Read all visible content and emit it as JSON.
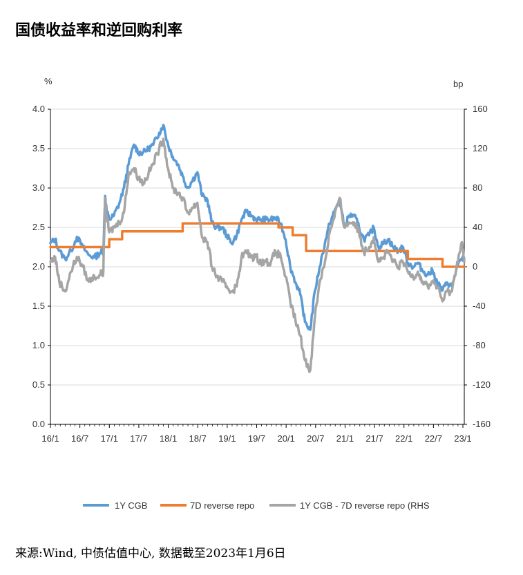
{
  "title": "国债收益率和逆回购利率",
  "source": "来源:Wind, 中债估值中心, 数据截至2023年1月6日",
  "chart_data": {
    "type": "line",
    "left_axis": {
      "unit": "%",
      "ticks": [
        "4.0",
        "3.5",
        "3.0",
        "2.5",
        "2.0",
        "1.5",
        "1.0",
        "0.5",
        "0.0"
      ],
      "ylim": [
        0,
        4
      ]
    },
    "right_axis": {
      "unit": "bp",
      "ticks": [
        "160",
        "120",
        "80",
        "40",
        "0",
        "-40",
        "-80",
        "-120",
        "-160"
      ],
      "ylim": [
        -160,
        160
      ]
    },
    "x_ticks": [
      "16/1",
      "16/7",
      "17/1",
      "17/7",
      "18/1",
      "18/7",
      "19/1",
      "19/7",
      "20/1",
      "20/7",
      "21/1",
      "21/7",
      "22/1",
      "22/7",
      "23/1"
    ],
    "xlim": [
      2016.0,
      2023.04
    ],
    "legend_position": "bottom",
    "grid": true,
    "series": [
      {
        "name": "1Y CGB",
        "axis": "left",
        "color": "#5b9bd5",
        "points": [
          [
            2016.0,
            2.3
          ],
          [
            2016.08,
            2.35
          ],
          [
            2016.15,
            2.2
          ],
          [
            2016.25,
            2.1
          ],
          [
            2016.35,
            2.2
          ],
          [
            2016.45,
            2.38
          ],
          [
            2016.55,
            2.25
          ],
          [
            2016.65,
            2.15
          ],
          [
            2016.75,
            2.12
          ],
          [
            2016.85,
            2.18
          ],
          [
            2016.9,
            2.2
          ],
          [
            2016.93,
            2.9
          ],
          [
            2016.96,
            2.7
          ],
          [
            2017.0,
            2.6
          ],
          [
            2017.08,
            2.65
          ],
          [
            2017.17,
            2.8
          ],
          [
            2017.25,
            3.0
          ],
          [
            2017.33,
            3.3
          ],
          [
            2017.42,
            3.55
          ],
          [
            2017.5,
            3.45
          ],
          [
            2017.58,
            3.45
          ],
          [
            2017.67,
            3.5
          ],
          [
            2017.75,
            3.55
          ],
          [
            2017.85,
            3.7
          ],
          [
            2017.92,
            3.8
          ],
          [
            2018.0,
            3.55
          ],
          [
            2018.08,
            3.4
          ],
          [
            2018.17,
            3.3
          ],
          [
            2018.25,
            3.15
          ],
          [
            2018.33,
            3.0
          ],
          [
            2018.42,
            3.1
          ],
          [
            2018.5,
            3.2
          ],
          [
            2018.58,
            2.9
          ],
          [
            2018.67,
            2.85
          ],
          [
            2018.75,
            2.55
          ],
          [
            2018.83,
            2.5
          ],
          [
            2018.92,
            2.5
          ],
          [
            2019.0,
            2.4
          ],
          [
            2019.08,
            2.3
          ],
          [
            2019.17,
            2.4
          ],
          [
            2019.25,
            2.6
          ],
          [
            2019.33,
            2.7
          ],
          [
            2019.42,
            2.65
          ],
          [
            2019.5,
            2.6
          ],
          [
            2019.58,
            2.6
          ],
          [
            2019.67,
            2.6
          ],
          [
            2019.75,
            2.6
          ],
          [
            2019.83,
            2.62
          ],
          [
            2019.92,
            2.55
          ],
          [
            2020.0,
            2.35
          ],
          [
            2020.08,
            2.0
          ],
          [
            2020.17,
            1.8
          ],
          [
            2020.25,
            1.65
          ],
          [
            2020.33,
            1.3
          ],
          [
            2020.42,
            1.2
          ],
          [
            2020.5,
            1.7
          ],
          [
            2020.58,
            2.0
          ],
          [
            2020.67,
            2.3
          ],
          [
            2020.75,
            2.55
          ],
          [
            2020.83,
            2.7
          ],
          [
            2020.92,
            2.85
          ],
          [
            2021.0,
            2.5
          ],
          [
            2021.08,
            2.65
          ],
          [
            2021.17,
            2.65
          ],
          [
            2021.25,
            2.5
          ],
          [
            2021.33,
            2.35
          ],
          [
            2021.42,
            2.4
          ],
          [
            2021.5,
            2.5
          ],
          [
            2021.58,
            2.25
          ],
          [
            2021.67,
            2.3
          ],
          [
            2021.75,
            2.35
          ],
          [
            2021.83,
            2.25
          ],
          [
            2021.92,
            2.2
          ],
          [
            2022.0,
            2.25
          ],
          [
            2022.08,
            2.05
          ],
          [
            2022.17,
            2.0
          ],
          [
            2022.25,
            2.05
          ],
          [
            2022.33,
            1.95
          ],
          [
            2022.42,
            1.9
          ],
          [
            2022.5,
            1.95
          ],
          [
            2022.58,
            1.8
          ],
          [
            2022.67,
            1.7
          ],
          [
            2022.75,
            1.8
          ],
          [
            2022.83,
            1.75
          ],
          [
            2022.92,
            2.0
          ],
          [
            2023.0,
            2.1
          ],
          [
            2023.04,
            2.1
          ]
        ]
      },
      {
        "name": "7D reverse repo",
        "axis": "left",
        "color": "#ed7d31",
        "points": [
          [
            2016.0,
            2.25
          ],
          [
            2016.96,
            2.25
          ],
          [
            2017.0,
            2.35
          ],
          [
            2017.12,
            2.35
          ],
          [
            2017.22,
            2.45
          ],
          [
            2018.0,
            2.45
          ],
          [
            2018.25,
            2.55
          ],
          [
            2019.85,
            2.55
          ],
          [
            2019.88,
            2.5
          ],
          [
            2020.12,
            2.4
          ],
          [
            2020.35,
            2.2
          ],
          [
            2021.95,
            2.2
          ],
          [
            2022.05,
            2.2
          ],
          [
            2022.08,
            2.1
          ],
          [
            2022.6,
            2.1
          ],
          [
            2022.67,
            2.0
          ],
          [
            2023.04,
            2.0
          ]
        ]
      },
      {
        "name": "1Y CGB - 7D reverse repo (RHS",
        "axis": "right",
        "color": "#a5a5a5",
        "points": [
          [
            2016.0,
            5
          ],
          [
            2016.08,
            10
          ],
          [
            2016.15,
            -15
          ],
          [
            2016.25,
            -25
          ],
          [
            2016.35,
            -5
          ],
          [
            2016.45,
            10
          ],
          [
            2016.55,
            0
          ],
          [
            2016.65,
            -15
          ],
          [
            2016.75,
            -10
          ],
          [
            2016.85,
            -8
          ],
          [
            2016.9,
            -5
          ],
          [
            2016.93,
            70
          ],
          [
            2016.96,
            50
          ],
          [
            2017.0,
            35
          ],
          [
            2017.08,
            40
          ],
          [
            2017.17,
            45
          ],
          [
            2017.25,
            55
          ],
          [
            2017.33,
            95
          ],
          [
            2017.42,
            100
          ],
          [
            2017.5,
            90
          ],
          [
            2017.58,
            85
          ],
          [
            2017.67,
            95
          ],
          [
            2017.75,
            105
          ],
          [
            2017.85,
            120
          ],
          [
            2017.92,
            130
          ],
          [
            2018.0,
            100
          ],
          [
            2018.08,
            80
          ],
          [
            2018.17,
            75
          ],
          [
            2018.25,
            70
          ],
          [
            2018.33,
            55
          ],
          [
            2018.42,
            60
          ],
          [
            2018.5,
            65
          ],
          [
            2018.58,
            30
          ],
          [
            2018.67,
            25
          ],
          [
            2018.75,
            0
          ],
          [
            2018.83,
            -10
          ],
          [
            2018.92,
            -15
          ],
          [
            2019.0,
            -20
          ],
          [
            2019.08,
            -25
          ],
          [
            2019.17,
            -20
          ],
          [
            2019.25,
            10
          ],
          [
            2019.33,
            15
          ],
          [
            2019.42,
            10
          ],
          [
            2019.5,
            10
          ],
          [
            2019.58,
            5
          ],
          [
            2019.67,
            5
          ],
          [
            2019.75,
            5
          ],
          [
            2019.83,
            15
          ],
          [
            2019.92,
            10
          ],
          [
            2020.0,
            -10
          ],
          [
            2020.08,
            -35
          ],
          [
            2020.17,
            -55
          ],
          [
            2020.25,
            -70
          ],
          [
            2020.33,
            -95
          ],
          [
            2020.42,
            -105
          ],
          [
            2020.5,
            -50
          ],
          [
            2020.58,
            -15
          ],
          [
            2020.67,
            5
          ],
          [
            2020.75,
            35
          ],
          [
            2020.83,
            50
          ],
          [
            2020.92,
            70
          ],
          [
            2021.0,
            40
          ],
          [
            2021.08,
            45
          ],
          [
            2021.17,
            45
          ],
          [
            2021.25,
            35
          ],
          [
            2021.33,
            15
          ],
          [
            2021.42,
            20
          ],
          [
            2021.5,
            30
          ],
          [
            2021.58,
            5
          ],
          [
            2021.67,
            10
          ],
          [
            2021.75,
            15
          ],
          [
            2021.83,
            5
          ],
          [
            2021.92,
            0
          ],
          [
            2022.0,
            5
          ],
          [
            2022.08,
            -5
          ],
          [
            2022.17,
            -10
          ],
          [
            2022.25,
            -5
          ],
          [
            2022.33,
            -15
          ],
          [
            2022.42,
            -20
          ],
          [
            2022.5,
            -15
          ],
          [
            2022.58,
            -20
          ],
          [
            2022.67,
            -35
          ],
          [
            2022.75,
            -25
          ],
          [
            2022.83,
            -25
          ],
          [
            2022.92,
            5
          ],
          [
            2023.0,
            25
          ],
          [
            2023.04,
            5
          ]
        ]
      }
    ]
  }
}
